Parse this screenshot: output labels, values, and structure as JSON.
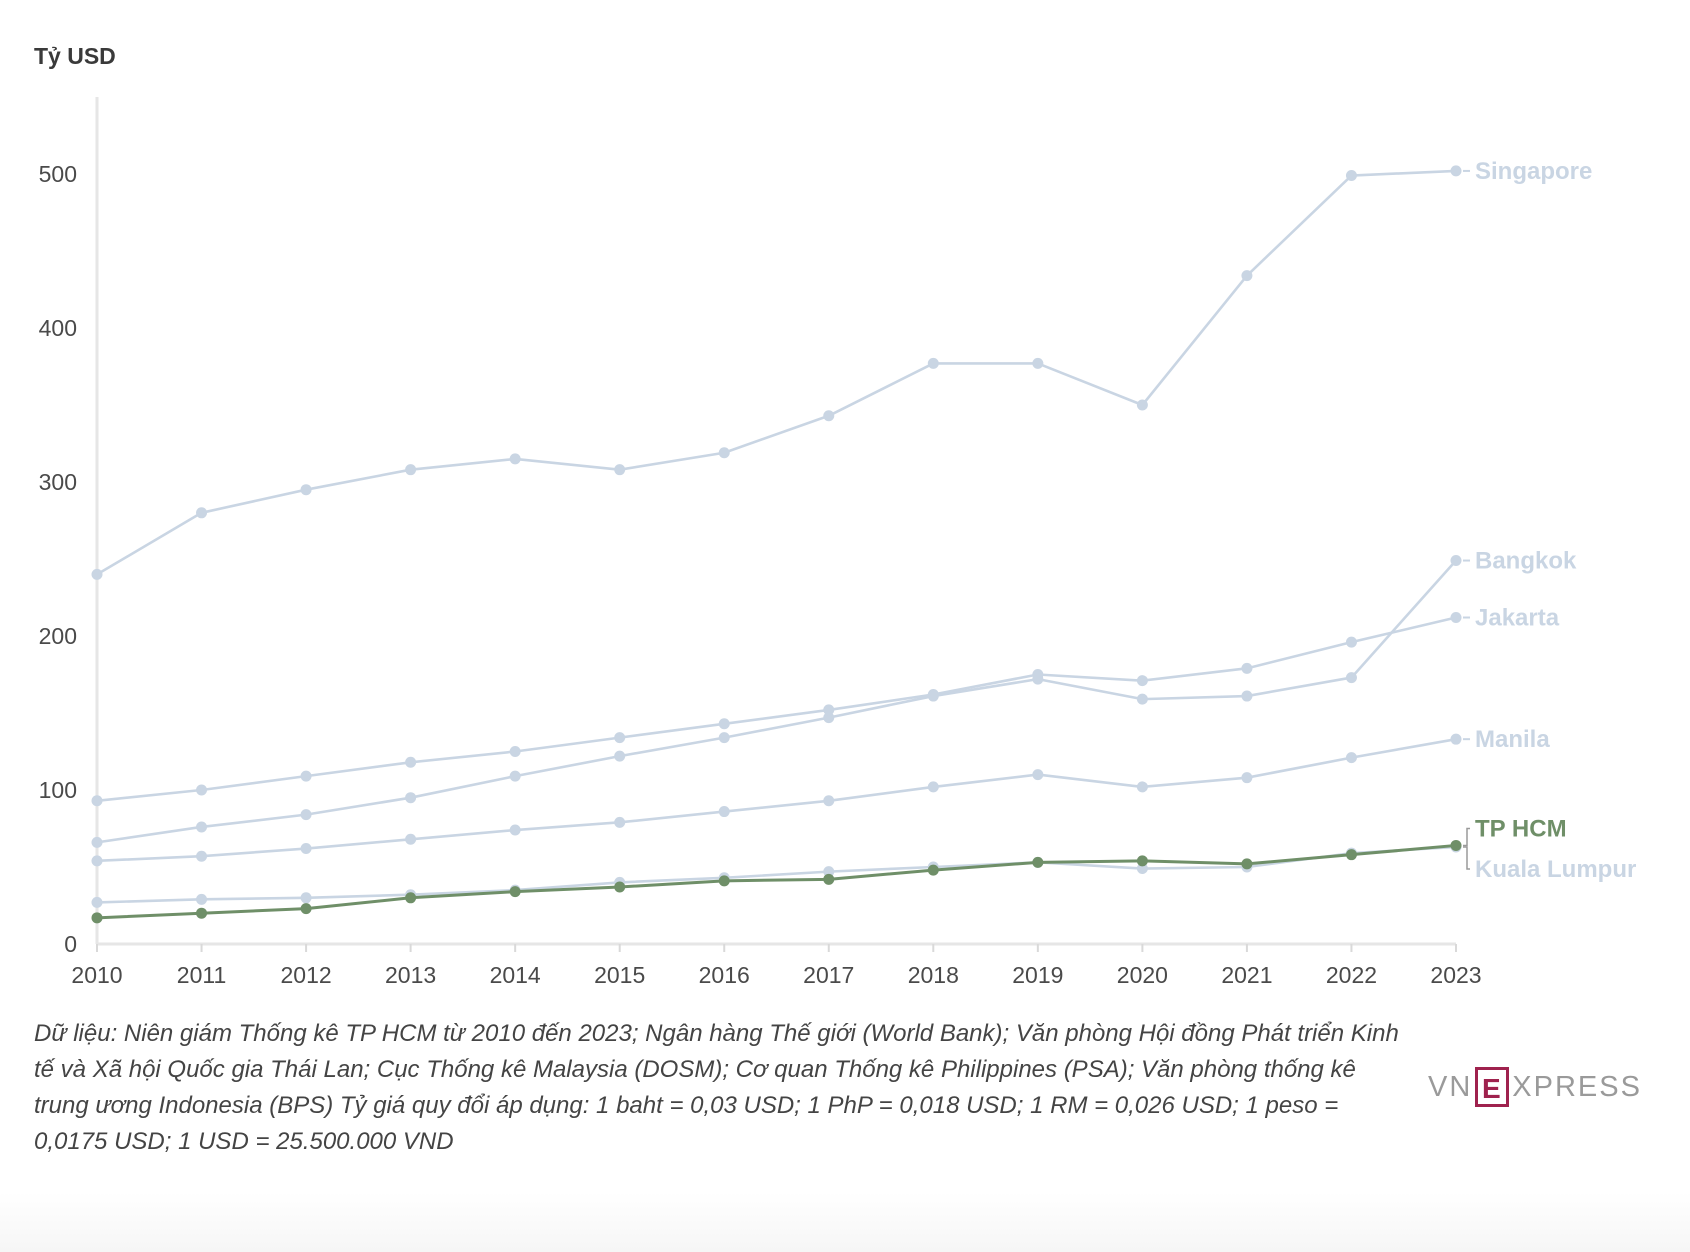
{
  "chart_data": {
    "type": "line",
    "ylabel": "Tỷ USD",
    "ylim": [
      0,
      550
    ],
    "yticks": [
      0,
      100,
      200,
      300,
      400,
      500
    ],
    "x": [
      "2010",
      "2011",
      "2012",
      "2013",
      "2014",
      "2015",
      "2016",
      "2017",
      "2018",
      "2019",
      "2020",
      "2021",
      "2022",
      "2023"
    ],
    "grid": false,
    "series": [
      {
        "name": "Singapore",
        "color": "#c9d5e3",
        "values": [
          240,
          280,
          295,
          308,
          315,
          308,
          319,
          343,
          377,
          377,
          350,
          434,
          499,
          502
        ]
      },
      {
        "name": "Bangkok",
        "color": "#c9d5e3",
        "values": [
          66,
          76,
          84,
          95,
          109,
          122,
          134,
          147,
          161,
          172,
          159,
          161,
          173,
          249
        ]
      },
      {
        "name": "Jakarta",
        "color": "#c9d5e3",
        "values": [
          93,
          100,
          109,
          118,
          125,
          134,
          143,
          152,
          162,
          175,
          171,
          179,
          196,
          212
        ]
      },
      {
        "name": "Manila",
        "color": "#c9d5e3",
        "values": [
          54,
          57,
          62,
          68,
          74,
          79,
          86,
          93,
          102,
          110,
          102,
          108,
          121,
          133
        ]
      },
      {
        "name": "Kuala Lumpur",
        "color": "#c9d5e3",
        "values": [
          27,
          29,
          30,
          32,
          35,
          40,
          43,
          47,
          50,
          53,
          49,
          50,
          59,
          63
        ]
      },
      {
        "name": "TP HCM",
        "color": "#6f8f68",
        "highlight": true,
        "values": [
          17,
          20,
          23,
          30,
          34,
          37,
          41,
          42,
          48,
          53,
          54,
          52,
          58,
          64
        ]
      }
    ]
  },
  "source_note": "Dữ liệu: Niên giám Thống kê TP HCM từ 2010 đến 2023; Ngân hàng Thế giới (World Bank); Văn phòng Hội đồng Phát triển Kinh tế và Xã hội Quốc gia Thái Lan; Cục Thống kê Malaysia (DOSM); Cơ quan Thống kê Philippines (PSA); Văn phòng thống kê trung ương Indonesia (BPS) Tỷ giá quy đổi áp dụng: 1 baht = 0,03 USD; 1 PhP = 0,018 USD; 1 RM = 0,026 USD; 1 peso = 0,0175 USD; 1 USD = 25.500.000 VND",
  "logo": {
    "vn": "VN",
    "e": "E",
    "xpress": "XPRESS"
  }
}
